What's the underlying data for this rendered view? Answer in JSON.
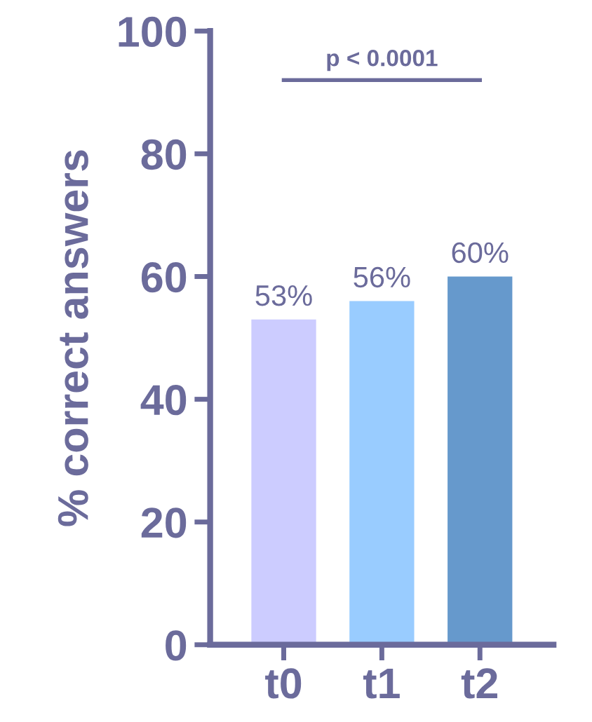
{
  "chart_data": {
    "type": "bar",
    "ylabel": "% correct answers",
    "categories": [
      "t0",
      "t1",
      "t2"
    ],
    "values": [
      53,
      56,
      60
    ],
    "colors": [
      "#ccccff",
      "#99ccff",
      "#6699cc"
    ],
    "value_labels": [
      "53%",
      "56%",
      "60%"
    ],
    "ylim": [
      0,
      100
    ],
    "yticks": [
      0,
      20,
      40,
      60,
      80,
      100
    ],
    "grid": false,
    "legend": false,
    "annotations": [
      "p < 0.0001"
    ]
  }
}
